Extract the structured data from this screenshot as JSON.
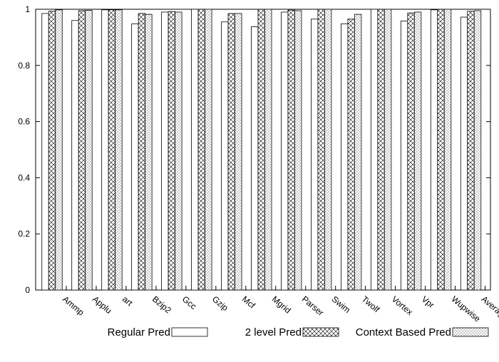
{
  "chart_data": {
    "type": "bar",
    "categories": [
      "Ammp",
      "Applu",
      "art",
      "Bzip2",
      "Gcc",
      "Gzip",
      "Mcf",
      "Mgrid",
      "Parser",
      "Swim",
      "Twolf",
      "Vortex",
      "Vpr",
      "Wupwise",
      "Average"
    ],
    "series": [
      {
        "name": "Regular Pred",
        "values": [
          0.985,
          0.96,
          0.998,
          0.948,
          0.99,
          1.0,
          0.955,
          0.938,
          0.99,
          0.965,
          0.948,
          1.0,
          0.958,
          0.998,
          0.972
        ]
      },
      {
        "name": "2 level Pred",
        "values": [
          0.993,
          0.995,
          0.998,
          0.985,
          0.992,
          1.0,
          0.985,
          1.0,
          0.997,
          1.0,
          0.965,
          1.0,
          0.987,
          1.0,
          0.993
        ]
      },
      {
        "name": "Context Based Pred",
        "values": [
          0.998,
          0.996,
          0.998,
          0.982,
          0.99,
          1.0,
          0.985,
          1.0,
          0.995,
          1.0,
          0.982,
          1.0,
          0.99,
          1.0,
          0.995
        ]
      }
    ],
    "ylim": [
      0,
      1
    ],
    "yticks": [
      "0",
      "0.2",
      "0.4",
      "0.6",
      "0.8",
      "1"
    ],
    "title": "",
    "xlabel": "",
    "ylabel": "",
    "legend_position": "bottom",
    "grid": false
  }
}
